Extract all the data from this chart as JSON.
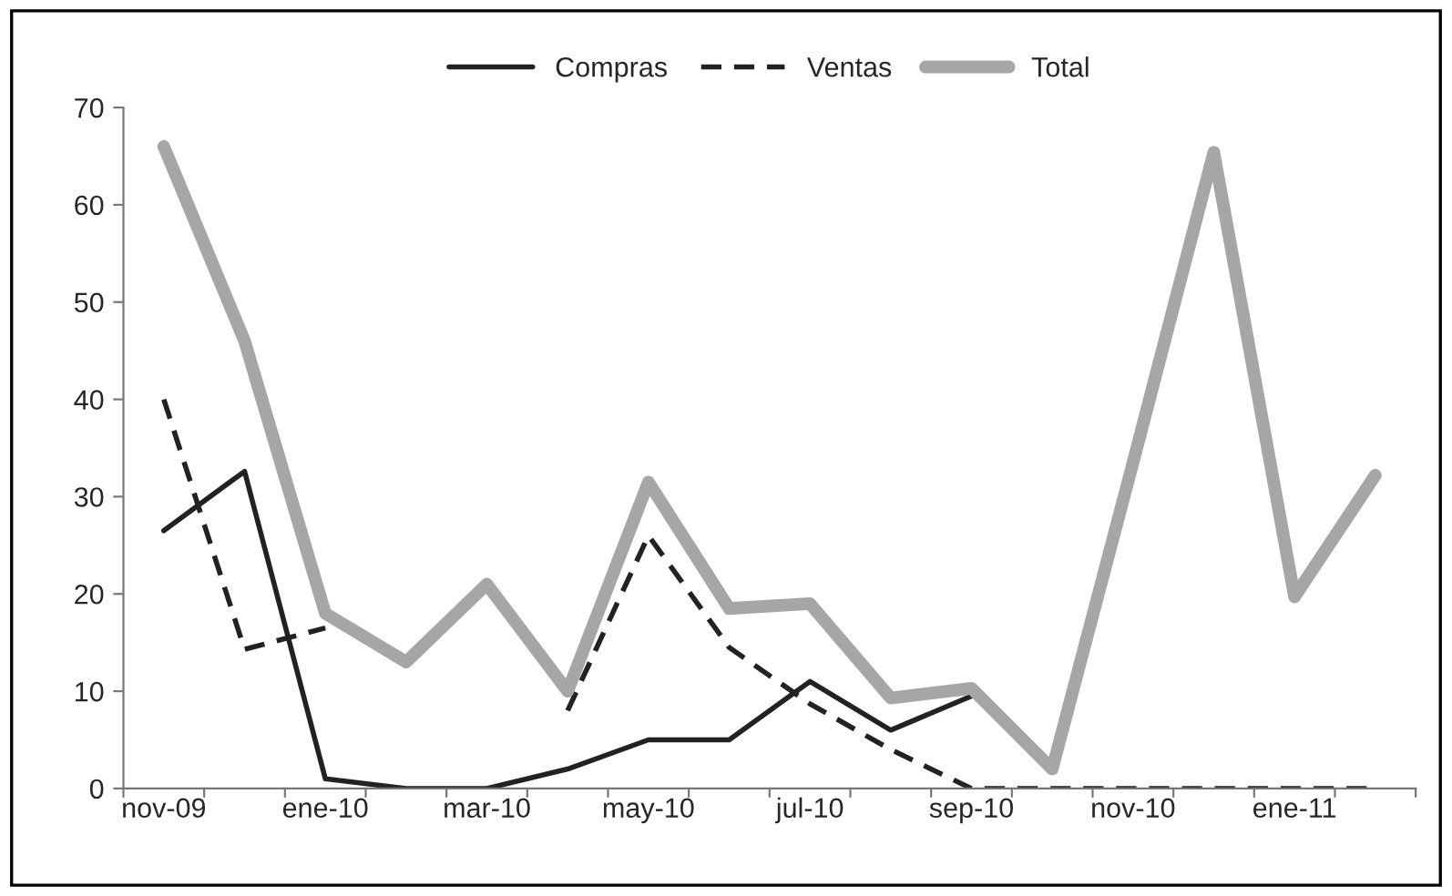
{
  "chart_data": {
    "type": "line",
    "categories": [
      "nov-09",
      null,
      "ene-10",
      null,
      "mar-10",
      null,
      "may-10",
      null,
      "jul-10",
      null,
      "sep-10",
      null,
      "nov-10",
      null,
      "ene-11",
      null
    ],
    "series": [
      {
        "name": "Compras",
        "color": "#222222",
        "line_style": "solid",
        "values": [
          26.5,
          32.6,
          1,
          0,
          0,
          2,
          5,
          5,
          11,
          6,
          9.5,
          null,
          null,
          null,
          null,
          null
        ]
      },
      {
        "name": "Ventas",
        "color": "#222222",
        "line_style": "dashed",
        "values": [
          40,
          14.3,
          16.5,
          null,
          null,
          8,
          26,
          14.5,
          8.7,
          4,
          0,
          0,
          0,
          0,
          0,
          0
        ]
      },
      {
        "name": "Total",
        "color": "#a6a6a6",
        "line_style": "solid",
        "values": [
          66,
          46,
          18,
          13,
          21,
          10,
          31.5,
          18.5,
          19,
          9.3,
          10.3,
          2,
          33.5,
          65.4,
          19.7,
          32.2
        ]
      }
    ],
    "ylim": [
      0,
      70
    ],
    "yticks": [
      0,
      10,
      20,
      30,
      40,
      50,
      60,
      70
    ],
    "grid": false,
    "legend": "top",
    "marker": "none"
  }
}
